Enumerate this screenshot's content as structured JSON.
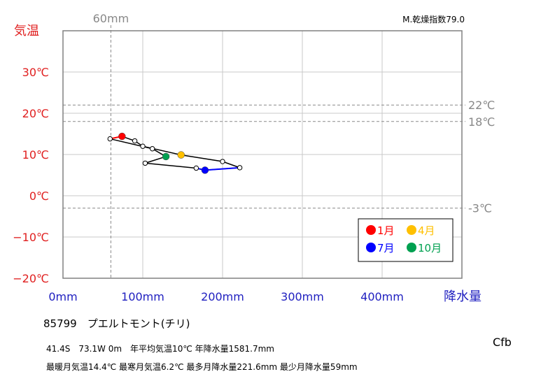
{
  "chart_data": {
    "type": "line",
    "x_axis": {
      "label": "降水量",
      "min": 0,
      "max": 500,
      "ticks": [
        0,
        100,
        200,
        300,
        400
      ],
      "tick_labels": [
        "0mm",
        "100mm",
        "200mm",
        "300mm",
        "400mm"
      ],
      "grid": true
    },
    "y_axis": {
      "label": "気温",
      "min": -20,
      "max": 40,
      "ticks": [
        -20,
        -10,
        0,
        10,
        20,
        30
      ],
      "tick_labels": [
        "−20℃",
        "−10℃",
        "0℃",
        "10℃",
        "20℃",
        "30℃"
      ],
      "grid": true
    },
    "monthly_points": [
      {
        "month": 1,
        "precip": 74,
        "temp": 14.4
      },
      {
        "month": 2,
        "precip": 90,
        "temp": 13.3
      },
      {
        "month": 3,
        "precip": 100,
        "temp": 12.0
      },
      {
        "month": 4,
        "precip": 148,
        "temp": 9.9
      },
      {
        "month": 5,
        "precip": 200,
        "temp": 8.3
      },
      {
        "month": 6,
        "precip": 221.6,
        "temp": 6.8
      },
      {
        "month": 7,
        "precip": 178,
        "temp": 6.2
      },
      {
        "month": 8,
        "precip": 167,
        "temp": 6.7
      },
      {
        "month": 9,
        "precip": 103,
        "temp": 7.9
      },
      {
        "month": 10,
        "precip": 129,
        "temp": 9.5
      },
      {
        "month": 11,
        "precip": 112,
        "temp": 11.4
      },
      {
        "month": 12,
        "precip": 59,
        "temp": 13.8
      }
    ],
    "highlight_months": [
      {
        "month": 1,
        "label": "1月",
        "color": "#ff0000"
      },
      {
        "month": 4,
        "label": "4月",
        "color": "#ffc000"
      },
      {
        "month": 7,
        "label": "7月",
        "color": "#0000ff"
      },
      {
        "month": 10,
        "label": "10月",
        "color": "#00a050"
      }
    ],
    "reference_lines": [
      {
        "axis": "y",
        "value": 22,
        "label": "22℃"
      },
      {
        "axis": "y",
        "value": 18,
        "label": "18℃"
      },
      {
        "axis": "y",
        "value": -3,
        "label": "-3℃"
      },
      {
        "axis": "x",
        "value": 60,
        "label": "60mm"
      }
    ],
    "dryness_index": "M.乾燥指数79.0",
    "legend": {
      "position": "bottom-right"
    }
  },
  "info": {
    "station": "85799　プエルトモント(チリ)",
    "koppen": "Cfb",
    "line1": "41.4S　73.1W 0m　年平均気温10℃ 年降水量1581.7mm",
    "line2": "最暖月気温14.4℃ 最寒月気温6.2℃ 最多月降水量221.6mm 最少月降水量59mm"
  },
  "colors": {
    "axis_label_temp": "#e02020",
    "axis_label_precip": "#2020c0",
    "reference": "#888888",
    "grid": "#c8c8c8",
    "frame": "#808080"
  }
}
